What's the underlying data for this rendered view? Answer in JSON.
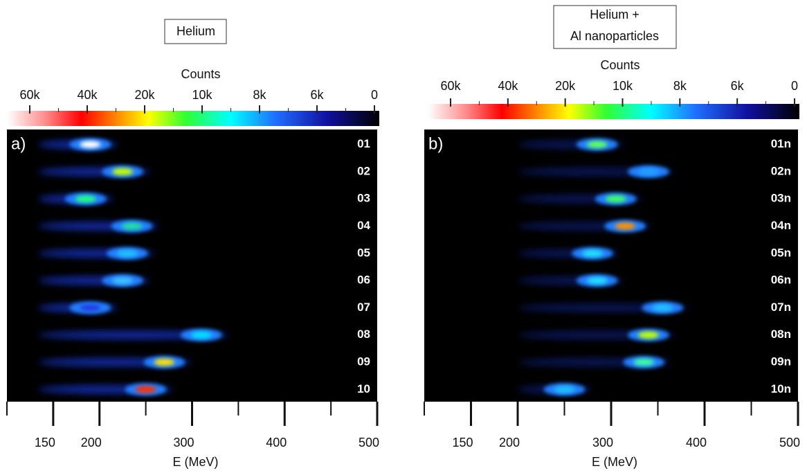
{
  "chart_data": [
    {
      "type": "spectra",
      "title": [
        "Helium"
      ],
      "panel_label": "a)",
      "colorbar_label": "Counts",
      "colorbar_ticks": [
        "60k",
        "40k",
        "20k",
        "10k",
        "8k",
        "6k",
        "0"
      ],
      "xlabel": "E (MeV)",
      "xlim": [
        100,
        500
      ],
      "xticks": [
        150,
        200,
        300,
        400,
        500
      ],
      "xminor_ticks": [
        100,
        250,
        350,
        450
      ],
      "categories": [
        "01",
        "02",
        "03",
        "04",
        "05",
        "06",
        "07",
        "08",
        "09",
        "10"
      ],
      "values": [
        190,
        225,
        185,
        235,
        230,
        225,
        190,
        310,
        270,
        250
      ],
      "colors": [
        "#ffffff",
        "#c8ff00",
        "#20ff80",
        "#20e0a0",
        "#20c0ff",
        "#40c0ff",
        "#2040e0",
        "#00e0ff",
        "#ffe000",
        "#ff3000"
      ]
    },
    {
      "type": "spectra",
      "title": [
        "Helium +",
        "Al nanoparticles"
      ],
      "panel_label": "b)",
      "colorbar_label": "Counts",
      "colorbar_ticks": [
        "60k",
        "40k",
        "20k",
        "10k",
        "8k",
        "6k",
        "0"
      ],
      "xlabel": "E (MeV)",
      "xlim": [
        100,
        500
      ],
      "xticks": [
        150,
        200,
        300,
        400,
        500
      ],
      "xminor_ticks": [
        100,
        250,
        350,
        450
      ],
      "categories": [
        "01n",
        "02n",
        "03n",
        "04n",
        "05n",
        "06n",
        "07n",
        "08n",
        "09n",
        "10n"
      ],
      "values": [
        285,
        340,
        305,
        315,
        280,
        285,
        355,
        340,
        335,
        250
      ],
      "colors": [
        "#60ff60",
        "#20a0ff",
        "#40ff60",
        "#ff9000",
        "#20e0ff",
        "#20e0ff",
        "#20c0ff",
        "#c0ff00",
        "#40ffa0",
        "#20c0ff"
      ]
    }
  ]
}
